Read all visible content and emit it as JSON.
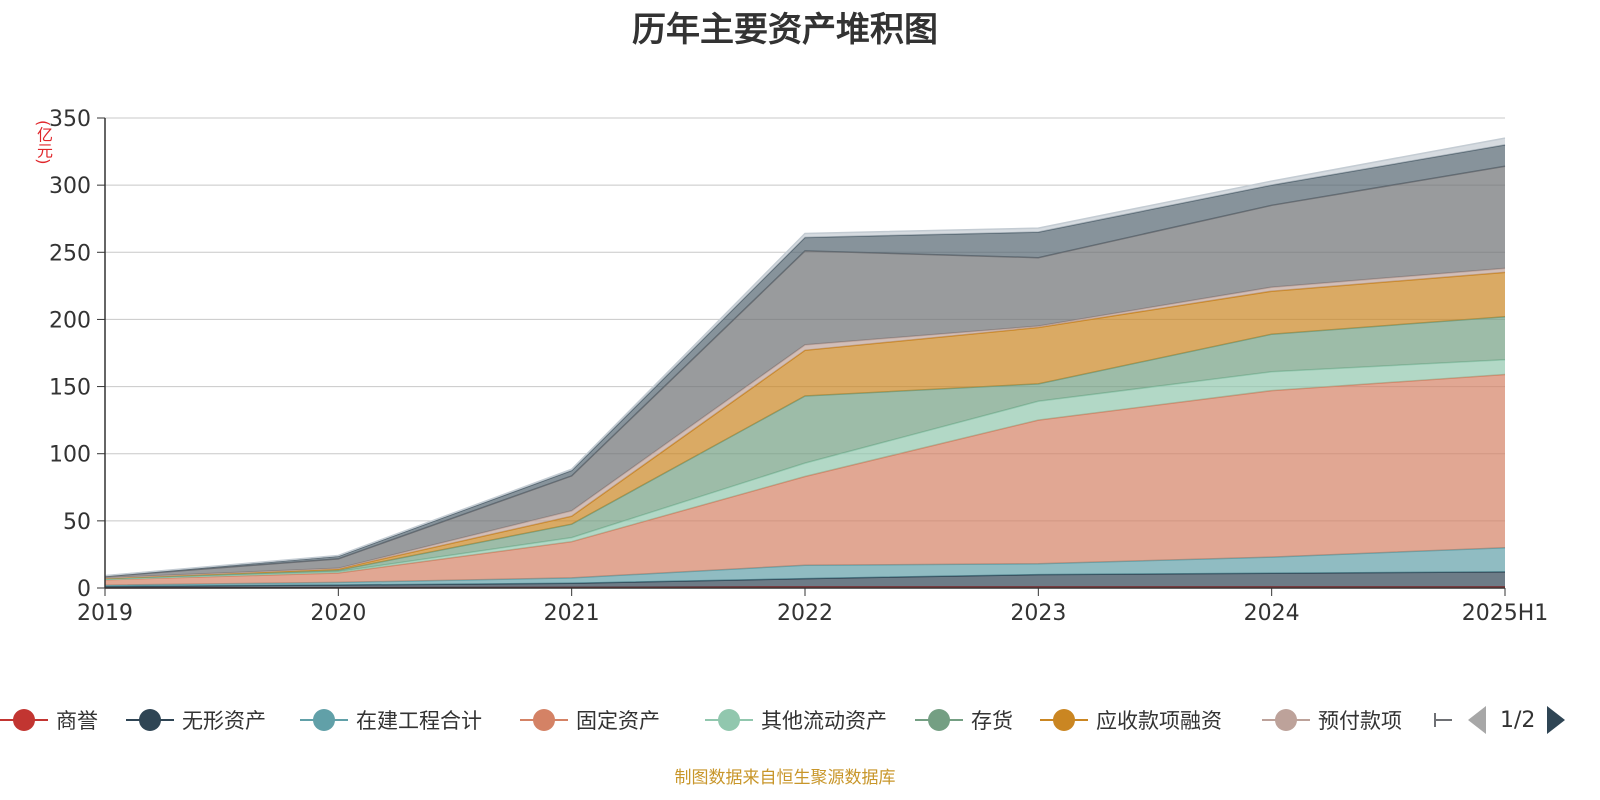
{
  "chart_data": {
    "type": "area",
    "stacked": true,
    "title": "历年主要资产堆积图",
    "unit": "(亿元)",
    "categories": [
      "2019",
      "2020",
      "2021",
      "2022",
      "2023",
      "2024",
      "2025H1"
    ],
    "y_ticks": [
      "0",
      "50",
      "100",
      "150",
      "200",
      "250",
      "300",
      "350"
    ],
    "ylim": [
      0,
      350
    ],
    "grid": true,
    "legend_position": "bottom",
    "series": [
      {
        "name": "商誉",
        "color": "#c23531",
        "values": [
          0.1,
          0.2,
          0.5,
          1,
          1,
          1,
          1
        ]
      },
      {
        "name": "无形资产",
        "color": "#2f4554",
        "values": [
          1,
          2,
          3,
          6,
          9,
          10,
          11
        ]
      },
      {
        "name": "在建工程合计",
        "color": "#61a0a8",
        "values": [
          1,
          2,
          4,
          10,
          8,
          12,
          18
        ]
      },
      {
        "name": "固定资产",
        "color": "#d48265",
        "values": [
          4,
          7,
          27,
          66,
          107,
          124,
          129
        ]
      },
      {
        "name": "其他流动资产",
        "color": "#91c7ae",
        "values": [
          0.3,
          1,
          3,
          10,
          14,
          14,
          11
        ]
      },
      {
        "name": "存货",
        "color": "#749f83",
        "values": [
          0.5,
          1,
          10,
          50,
          13,
          28,
          32
        ]
      },
      {
        "name": "应收款项融资",
        "color": "#ca8622",
        "values": [
          0.5,
          1,
          6,
          34,
          42,
          32,
          33
        ]
      },
      {
        "name": "预付款项",
        "color": "#bda29a",
        "values": [
          0.2,
          0.5,
          4,
          4,
          1,
          3,
          3
        ]
      },
      {
        "name": "",
        "color": "#6e7074",
        "values": [
          1,
          7,
          26,
          70,
          51,
          61,
          76
        ]
      },
      {
        "name": "",
        "color": "#546570",
        "values": [
          0.4,
          2,
          4,
          10,
          19,
          15,
          16
        ]
      },
      {
        "name": "",
        "color": "#c4ccd3",
        "values": [
          0.2,
          0.5,
          1,
          3,
          3,
          3,
          5
        ]
      }
    ]
  },
  "legend": {
    "items": [
      "商誉",
      "无形资产",
      "在建工程合计",
      "固定资产",
      "其他流动资产",
      "存货",
      "应收款项融资",
      "预付款项"
    ],
    "page": "1/2"
  },
  "source_note": "制图数据来自恒生聚源数据库"
}
